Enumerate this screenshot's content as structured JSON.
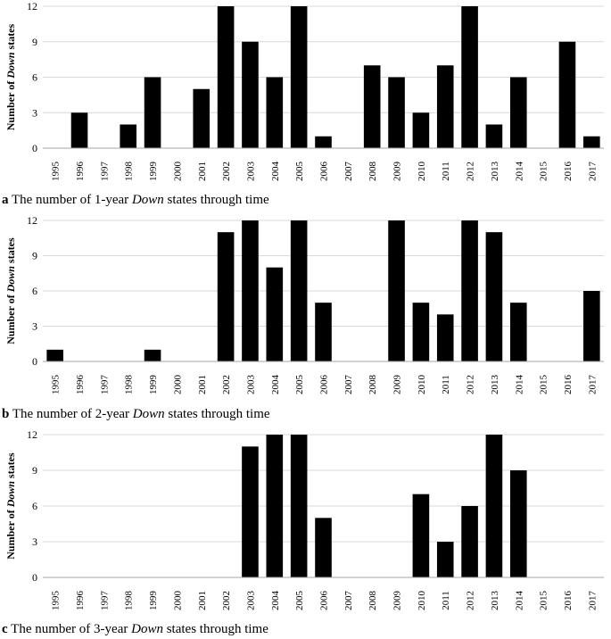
{
  "chart_data": [
    {
      "type": "bar",
      "panel_letter": "a",
      "caption_pre": "The number of 1-year",
      "caption_italic": "Down",
      "caption_post": "states through time",
      "ylabel_pre": "Number of ",
      "ylabel_italic": "Down",
      "ylabel_post": " states",
      "ylim": [
        0,
        12
      ],
      "yticks": [
        "0",
        "3",
        "6",
        "9",
        "12"
      ],
      "grid": true,
      "categories": [
        "1995",
        "1996",
        "1997",
        "1998",
        "1999",
        "2000",
        "2001",
        "2002",
        "2003",
        "2004",
        "2005",
        "2006",
        "2007",
        "2008",
        "2009",
        "2010",
        "2011",
        "2012",
        "2013",
        "2014",
        "2015",
        "2016",
        "2017"
      ],
      "values": [
        0,
        3,
        0,
        2,
        6,
        0,
        5,
        12,
        9,
        6,
        12,
        1,
        0,
        7,
        6,
        3,
        7,
        12,
        2,
        6,
        0,
        9,
        1
      ]
    },
    {
      "type": "bar",
      "panel_letter": "b",
      "caption_pre": "The number of 2-year",
      "caption_italic": "Down",
      "caption_post": "states through time",
      "ylabel_pre": "Number of ",
      "ylabel_italic": "Down",
      "ylabel_post": " states",
      "ylim": [
        0,
        12
      ],
      "yticks": [
        "0",
        "3",
        "6",
        "9",
        "12"
      ],
      "grid": true,
      "categories": [
        "1995",
        "1996",
        "1997",
        "1998",
        "1999",
        "2000",
        "2001",
        "2002",
        "2003",
        "2004",
        "2005",
        "2006",
        "2007",
        "2008",
        "2009",
        "2010",
        "2011",
        "2012",
        "2013",
        "2014",
        "2015",
        "2016",
        "2017"
      ],
      "values": [
        1,
        0,
        0,
        0,
        1,
        0,
        0,
        11,
        12,
        8,
        12,
        5,
        0,
        0,
        12,
        5,
        4,
        12,
        11,
        5,
        0,
        0,
        6
      ]
    },
    {
      "type": "bar",
      "panel_letter": "c",
      "caption_pre": "The number of 3-year",
      "caption_italic": "Down",
      "caption_post": "states through time",
      "ylabel_pre": "Number of ",
      "ylabel_italic": "Down",
      "ylabel_post": " states",
      "ylim": [
        0,
        12
      ],
      "yticks": [
        "0",
        "3",
        "6",
        "9",
        "12"
      ],
      "grid": true,
      "categories": [
        "1995",
        "1996",
        "1997",
        "1998",
        "1999",
        "2000",
        "2001",
        "2002",
        "2003",
        "2004",
        "2005",
        "2006",
        "2007",
        "2008",
        "2009",
        "2010",
        "2011",
        "2012",
        "2013",
        "2014",
        "2015",
        "2016",
        "2017"
      ],
      "values": [
        0,
        0,
        0,
        0,
        0,
        0,
        0,
        0,
        11,
        12,
        12,
        5,
        0,
        0,
        0,
        7,
        3,
        6,
        12,
        9,
        0,
        0,
        0
      ]
    }
  ]
}
